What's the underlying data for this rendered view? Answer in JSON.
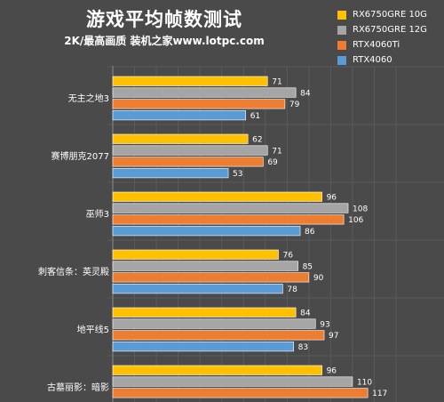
{
  "chart_data": {
    "type": "bar",
    "orientation": "horizontal",
    "title": "游戏平均帧数测试",
    "subtitle": "2K/最高画质 装机之家www.lotpc.com",
    "xlabel": "",
    "ylabel": "",
    "xlim": [
      0,
      130
    ],
    "grid": true,
    "legend_position": "top-right",
    "categories": [
      "无主之地3",
      "赛博朋克2077",
      "巫师3",
      "刺客信条：英灵殿",
      "地平线5",
      "古墓丽影：暗影"
    ],
    "series": [
      {
        "name": "RX6750GRE 10G",
        "color": "#ffc000",
        "values": [
          71,
          62,
          96,
          76,
          84,
          96
        ]
      },
      {
        "name": "RX6750GRE 12G",
        "color": "#a5a5a5",
        "values": [
          84,
          71,
          108,
          85,
          93,
          110
        ]
      },
      {
        "name": "RTX4060Ti",
        "color": "#ed7d31",
        "values": [
          79,
          69,
          106,
          90,
          97,
          117
        ]
      },
      {
        "name": "RTX4060",
        "color": "#5b9bd5",
        "values": [
          61,
          53,
          86,
          78,
          83,
          null
        ]
      }
    ]
  }
}
